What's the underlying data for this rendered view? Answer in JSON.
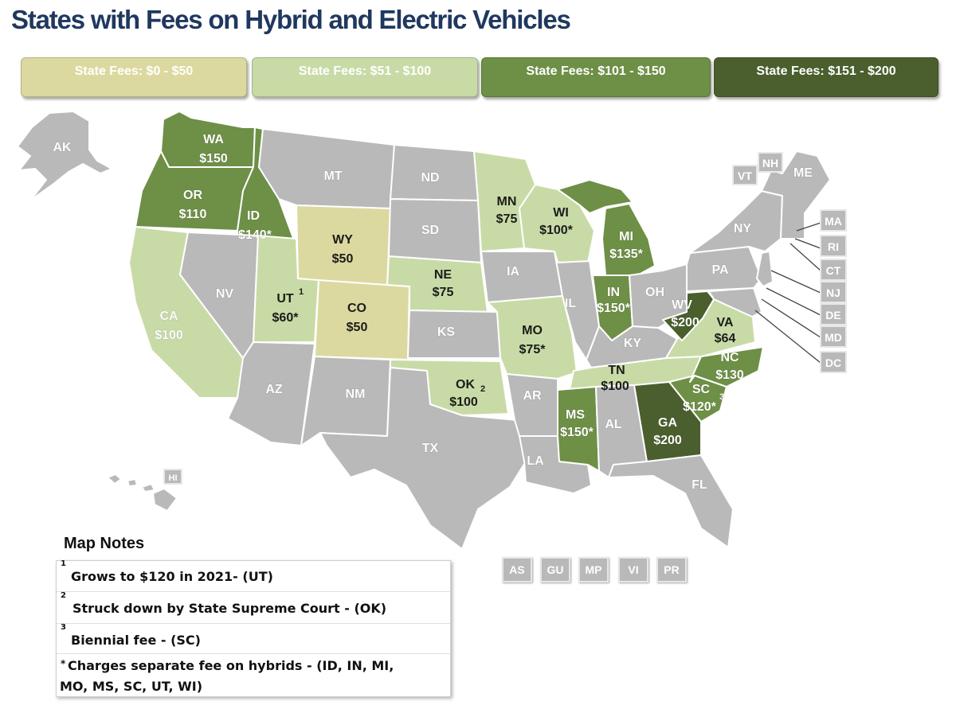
{
  "title": "States with Fees on Hybrid and Electric Vehicles",
  "colors": {
    "title": "#20385f",
    "fee_0_50": "#dcd9a0",
    "fee_51_100": "#c8dba6",
    "fee_101_150": "#6e8f46",
    "fee_151_200": "#4a5f2d",
    "no_fee": "#b9b9b9"
  },
  "legend": [
    {
      "label": "State Fees: $0 - $50"
    },
    {
      "label": "State Fees: $51 - $100"
    },
    {
      "label": "State Fees: $101 - $150"
    },
    {
      "label": "State Fees: $151 - $200"
    }
  ],
  "states": {
    "AK": {
      "abbr": "AK",
      "fee": ""
    },
    "WA": {
      "abbr": "WA",
      "fee": "$150"
    },
    "OR": {
      "abbr": "OR",
      "fee": "$110"
    },
    "ID": {
      "abbr": "ID",
      "fee": "$140*"
    },
    "CA": {
      "abbr": "CA",
      "fee": "$100"
    },
    "NV": {
      "abbr": "NV",
      "fee": ""
    },
    "MT": {
      "abbr": "MT",
      "fee": ""
    },
    "WY": {
      "abbr": "WY",
      "fee": "$50"
    },
    "UT": {
      "abbr": "UT",
      "fee": "$60*",
      "note": "1"
    },
    "CO": {
      "abbr": "CO",
      "fee": "$50"
    },
    "AZ": {
      "abbr": "AZ",
      "fee": ""
    },
    "NM": {
      "abbr": "NM",
      "fee": ""
    },
    "ND": {
      "abbr": "ND",
      "fee": ""
    },
    "SD": {
      "abbr": "SD",
      "fee": ""
    },
    "NE": {
      "abbr": "NE",
      "fee": "$75"
    },
    "KS": {
      "abbr": "KS",
      "fee": ""
    },
    "OK": {
      "abbr": "OK",
      "fee": "$100",
      "note": "2"
    },
    "TX": {
      "abbr": "TX",
      "fee": ""
    },
    "MN": {
      "abbr": "MN",
      "fee": "$75"
    },
    "IA": {
      "abbr": "IA",
      "fee": ""
    },
    "MO": {
      "abbr": "MO",
      "fee": "$75*"
    },
    "AR": {
      "abbr": "AR",
      "fee": ""
    },
    "LA": {
      "abbr": "LA",
      "fee": ""
    },
    "WI": {
      "abbr": "WI",
      "fee": "$100*"
    },
    "IL": {
      "abbr": "IL",
      "fee": ""
    },
    "MI": {
      "abbr": "MI",
      "fee": "$135*"
    },
    "IN": {
      "abbr": "IN",
      "fee": "$150*"
    },
    "OH": {
      "abbr": "OH",
      "fee": ""
    },
    "KY": {
      "abbr": "KY",
      "fee": ""
    },
    "TN": {
      "abbr": "TN",
      "fee": "$100"
    },
    "MS": {
      "abbr": "MS",
      "fee": "$150*"
    },
    "AL": {
      "abbr": "AL",
      "fee": ""
    },
    "GA": {
      "abbr": "GA",
      "fee": "$200"
    },
    "FL": {
      "abbr": "FL",
      "fee": ""
    },
    "SC": {
      "abbr": "SC",
      "fee": "$120*",
      "note": "3"
    },
    "NC": {
      "abbr": "NC",
      "fee": "$130"
    },
    "VA": {
      "abbr": "VA",
      "fee": "$64"
    },
    "WV": {
      "abbr": "WV",
      "fee": "$200"
    },
    "PA": {
      "abbr": "PA",
      "fee": ""
    },
    "NY": {
      "abbr": "NY",
      "fee": ""
    },
    "ME": {
      "abbr": "ME",
      "fee": ""
    }
  },
  "small_states": [
    "VT",
    "NH",
    "MA",
    "RI",
    "CT",
    "NJ",
    "DE",
    "MD",
    "DC"
  ],
  "hawaii": "HI",
  "territories": [
    "AS",
    "GU",
    "MP",
    "VI",
    "PR"
  ],
  "notes_title": "Map Notes",
  "notes": [
    {
      "marker": "1",
      "text": "Grows to $120 in 2021- (UT)"
    },
    {
      "marker": "2",
      "text": "Struck down by State Supreme Court - (OK)"
    },
    {
      "marker": "3",
      "text": "Biennial fee - (SC)"
    },
    {
      "marker": "*",
      "text": "Charges separate fee on hybrids - (ID, IN, MI,"
    },
    {
      "marker": "",
      "text": "MO, MS, SC, UT, WI)"
    }
  ]
}
